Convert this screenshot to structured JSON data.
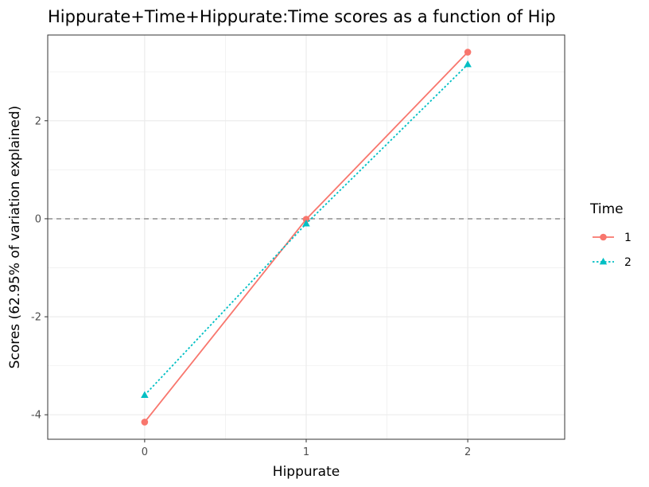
{
  "chart_data": {
    "type": "line",
    "title": "Hippurate+Time+Hippurate:Time scores as a function of Hip",
    "xlabel": "Hippurate",
    "ylabel": "Scores (62.95% of variation explained)",
    "x": [
      0,
      1,
      2
    ],
    "x_tick_labels": [
      "0",
      "1",
      "2"
    ],
    "xlim": [
      -0.6,
      2.6
    ],
    "ylim": [
      -4.5,
      3.75
    ],
    "y_ticks": [
      -4,
      -2,
      0,
      2
    ],
    "y_tick_labels": [
      "-4",
      "-2",
      "0",
      "2"
    ],
    "reference_line": {
      "y": 0,
      "style": "dashed",
      "color": "#999999"
    },
    "grid": true,
    "legend": {
      "title": "Time",
      "position": "right"
    },
    "series": [
      {
        "name": "1",
        "values": [
          -4.15,
          -0.01,
          3.4
        ],
        "color": "#F8766D",
        "marker": "circle",
        "line_style": "solid"
      },
      {
        "name": "2",
        "values": [
          -3.6,
          -0.1,
          3.15
        ],
        "color": "#00BFC4",
        "marker": "triangle",
        "line_style": "dotted"
      }
    ]
  }
}
